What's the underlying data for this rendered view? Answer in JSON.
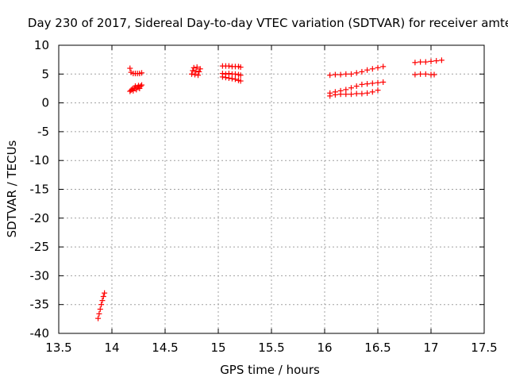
{
  "chart_data": {
    "type": "scatter",
    "title": "Day 230 of 2017, Sidereal Day-to-day VTEC variation (SDTVAR) for receiver amte",
    "xlabel": "GPS time / hours",
    "ylabel": "SDTVAR / TECUs",
    "xlim": [
      13.5,
      17.5
    ],
    "ylim": [
      -40,
      10
    ],
    "xticks": [
      13.5,
      14,
      14.5,
      15,
      15.5,
      16,
      16.5,
      17,
      17.5
    ],
    "xtick_labels": [
      "13.5",
      "14",
      "14.5",
      "15",
      "15.5",
      "16",
      "16.5",
      "17",
      "17.5"
    ],
    "yticks": [
      -40,
      -35,
      -30,
      -25,
      -20,
      -15,
      -10,
      -5,
      0,
      5,
      10
    ],
    "ytick_labels": [
      "-40",
      "-35",
      "-30",
      "-25",
      "-20",
      "-15",
      "-10",
      "-5",
      "0",
      "5",
      "10"
    ],
    "grid": true,
    "marker": "+",
    "series": [
      {
        "name": "SDTVAR",
        "color": "#ff0000",
        "points": [
          [
            13.87,
            -37.4
          ],
          [
            13.88,
            -36.6
          ],
          [
            13.89,
            -35.8
          ],
          [
            13.9,
            -35.0
          ],
          [
            13.91,
            -34.3
          ],
          [
            13.92,
            -33.6
          ],
          [
            13.93,
            -33.0
          ],
          [
            14.17,
            6.0
          ],
          [
            14.18,
            5.3
          ],
          [
            14.2,
            5.1
          ],
          [
            14.22,
            5.1
          ],
          [
            14.24,
            5.1
          ],
          [
            14.26,
            5.1
          ],
          [
            14.28,
            5.2
          ],
          [
            14.17,
            2.0
          ],
          [
            14.18,
            2.2
          ],
          [
            14.19,
            2.4
          ],
          [
            14.2,
            2.1
          ],
          [
            14.21,
            2.6
          ],
          [
            14.22,
            2.9
          ],
          [
            14.23,
            2.3
          ],
          [
            14.24,
            2.7
          ],
          [
            14.25,
            3.0
          ],
          [
            14.26,
            2.5
          ],
          [
            14.27,
            2.9
          ],
          [
            14.28,
            3.1
          ],
          [
            14.75,
            5.0
          ],
          [
            14.76,
            5.6
          ],
          [
            14.77,
            6.1
          ],
          [
            14.78,
            4.9
          ],
          [
            14.79,
            5.5
          ],
          [
            14.8,
            6.2
          ],
          [
            14.81,
            4.8
          ],
          [
            14.82,
            5.4
          ],
          [
            14.83,
            5.9
          ],
          [
            15.04,
            6.4
          ],
          [
            15.07,
            6.4
          ],
          [
            15.1,
            6.4
          ],
          [
            15.13,
            6.3
          ],
          [
            15.16,
            6.3
          ],
          [
            15.19,
            6.3
          ],
          [
            15.21,
            6.2
          ],
          [
            15.04,
            5.1
          ],
          [
            15.07,
            5.0
          ],
          [
            15.1,
            5.1
          ],
          [
            15.13,
            5.0
          ],
          [
            15.16,
            5.0
          ],
          [
            15.19,
            4.9
          ],
          [
            15.21,
            4.8
          ],
          [
            15.04,
            4.5
          ],
          [
            15.07,
            4.4
          ],
          [
            15.1,
            4.3
          ],
          [
            15.13,
            4.2
          ],
          [
            15.16,
            4.1
          ],
          [
            15.19,
            3.9
          ],
          [
            15.21,
            3.8
          ],
          [
            16.05,
            4.8
          ],
          [
            16.1,
            4.9
          ],
          [
            16.15,
            4.9
          ],
          [
            16.2,
            5.0
          ],
          [
            16.25,
            5.0
          ],
          [
            16.3,
            5.2
          ],
          [
            16.35,
            5.4
          ],
          [
            16.4,
            5.7
          ],
          [
            16.45,
            5.9
          ],
          [
            16.5,
            6.1
          ],
          [
            16.55,
            6.3
          ],
          [
            16.05,
            1.7
          ],
          [
            16.1,
            1.9
          ],
          [
            16.15,
            2.1
          ],
          [
            16.2,
            2.3
          ],
          [
            16.25,
            2.6
          ],
          [
            16.3,
            2.9
          ],
          [
            16.35,
            3.2
          ],
          [
            16.4,
            3.3
          ],
          [
            16.45,
            3.4
          ],
          [
            16.5,
            3.5
          ],
          [
            16.55,
            3.6
          ],
          [
            16.05,
            1.2
          ],
          [
            16.1,
            1.4
          ],
          [
            16.15,
            1.5
          ],
          [
            16.2,
            1.5
          ],
          [
            16.25,
            1.5
          ],
          [
            16.3,
            1.6
          ],
          [
            16.35,
            1.6
          ],
          [
            16.4,
            1.7
          ],
          [
            16.45,
            1.9
          ],
          [
            16.5,
            2.2
          ],
          [
            16.85,
            7.0
          ],
          [
            16.9,
            7.1
          ],
          [
            16.95,
            7.1
          ],
          [
            17.0,
            7.2
          ],
          [
            17.05,
            7.3
          ],
          [
            17.1,
            7.4
          ],
          [
            16.85,
            4.9
          ],
          [
            16.9,
            5.0
          ],
          [
            16.95,
            5.0
          ],
          [
            17.0,
            4.9
          ],
          [
            17.03,
            4.9
          ]
        ]
      }
    ]
  }
}
